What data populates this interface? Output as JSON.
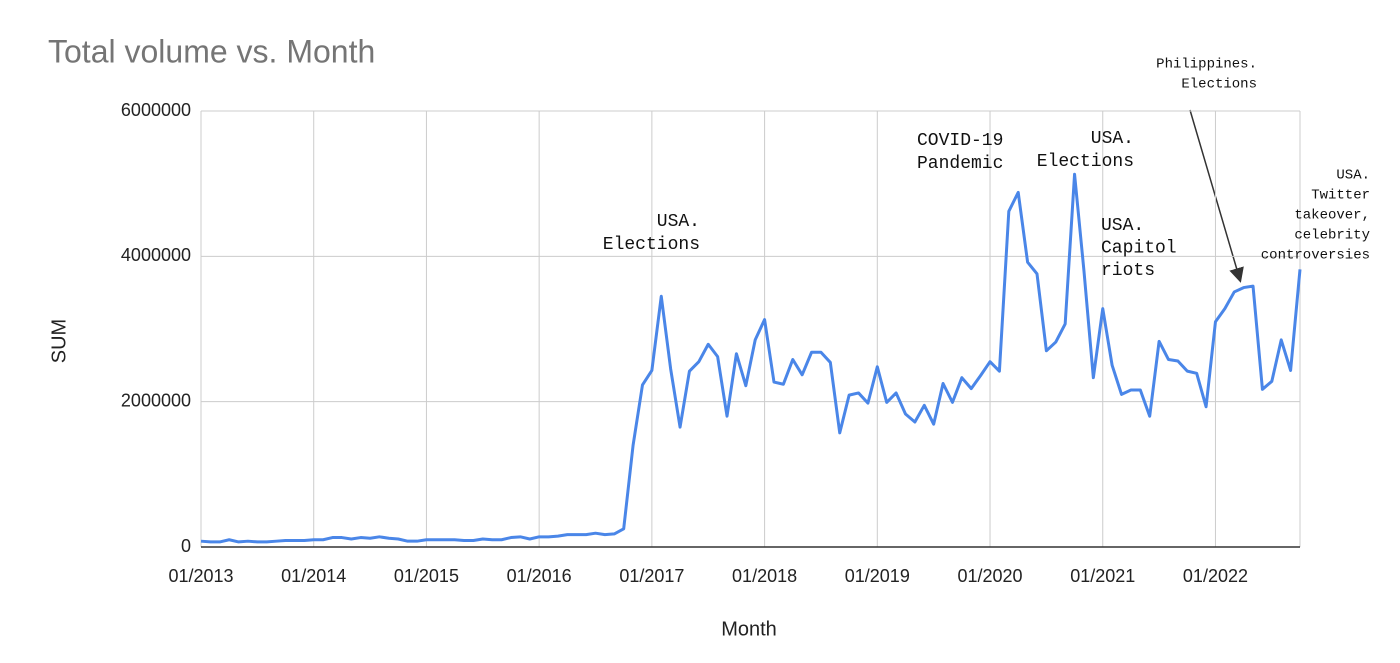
{
  "chart_data": {
    "type": "line",
    "title": "Total volume vs. Month",
    "x_label": "Month",
    "y_label": "SUM",
    "color": "#4a86e8",
    "grid": true,
    "ylim": [
      0,
      6000000
    ],
    "yticks": [
      0,
      2000000,
      4000000,
      6000000
    ],
    "categories": [
      "01/2013",
      null,
      null,
      null,
      null,
      null,
      null,
      null,
      null,
      null,
      null,
      null,
      "01/2014",
      null,
      null,
      null,
      null,
      null,
      null,
      null,
      null,
      null,
      null,
      null,
      "01/2015",
      null,
      null,
      null,
      null,
      null,
      null,
      null,
      null,
      null,
      null,
      null,
      "01/2016",
      null,
      null,
      null,
      null,
      null,
      null,
      null,
      null,
      null,
      null,
      null,
      "01/2017",
      null,
      null,
      null,
      null,
      null,
      null,
      null,
      null,
      null,
      null,
      null,
      "01/2018",
      null,
      null,
      null,
      null,
      null,
      null,
      null,
      null,
      null,
      null,
      null,
      "01/2019",
      null,
      null,
      null,
      null,
      null,
      null,
      null,
      null,
      null,
      null,
      null,
      "01/2020",
      null,
      null,
      null,
      null,
      null,
      null,
      null,
      null,
      null,
      null,
      null,
      "01/2021",
      null,
      null,
      null,
      null,
      null,
      null,
      null,
      null,
      null,
      null,
      null,
      "01/2022",
      null,
      null,
      null,
      null,
      null,
      null,
      null,
      null,
      null
    ],
    "values": [
      80000,
      70000,
      70000,
      100000,
      70000,
      80000,
      70000,
      70000,
      80000,
      90000,
      90000,
      90000,
      100000,
      100000,
      130000,
      130000,
      110000,
      130000,
      120000,
      140000,
      120000,
      110000,
      80000,
      80000,
      100000,
      100000,
      100000,
      100000,
      90000,
      90000,
      110000,
      100000,
      100000,
      130000,
      140000,
      110000,
      140000,
      140000,
      150000,
      170000,
      170000,
      170000,
      190000,
      170000,
      180000,
      250000,
      1400000,
      2230000,
      2430000,
      3450000,
      2450000,
      1650000,
      2420000,
      2550000,
      2790000,
      2620000,
      1800000,
      2660000,
      2220000,
      2850000,
      3130000,
      2270000,
      2240000,
      2580000,
      2370000,
      2680000,
      2680000,
      2540000,
      1570000,
      2090000,
      2120000,
      1980000,
      2480000,
      1990000,
      2120000,
      1830000,
      1720000,
      1950000,
      1690000,
      2250000,
      1990000,
      2330000,
      2180000,
      2360000,
      2550000,
      2420000,
      4620000,
      4880000,
      3920000,
      3760000,
      2700000,
      2820000,
      3070000,
      5130000,
      3800000,
      2330000,
      3280000,
      2500000,
      2100000,
      2160000,
      2160000,
      1800000,
      2830000,
      2580000,
      2560000,
      2420000,
      2390000,
      1930000,
      3100000,
      3280000,
      3510000,
      3570000,
      3590000,
      2170000,
      2280000,
      2850000,
      2430000,
      3820000
    ],
    "annotations": [
      {
        "lines": [
          "USA.",
          "Elections"
        ]
      },
      {
        "lines": [
          "COVID-19",
          "Pandemic"
        ]
      },
      {
        "lines": [
          "USA.",
          "Elections"
        ]
      },
      {
        "lines": [
          "USA.",
          "Capitol",
          "riots"
        ]
      },
      {
        "lines": [
          "Philippines.",
          "Elections"
        ]
      },
      {
        "lines": [
          "USA.",
          "Twitter",
          "takeover,",
          "celebrity",
          "controversies"
        ]
      }
    ]
  }
}
